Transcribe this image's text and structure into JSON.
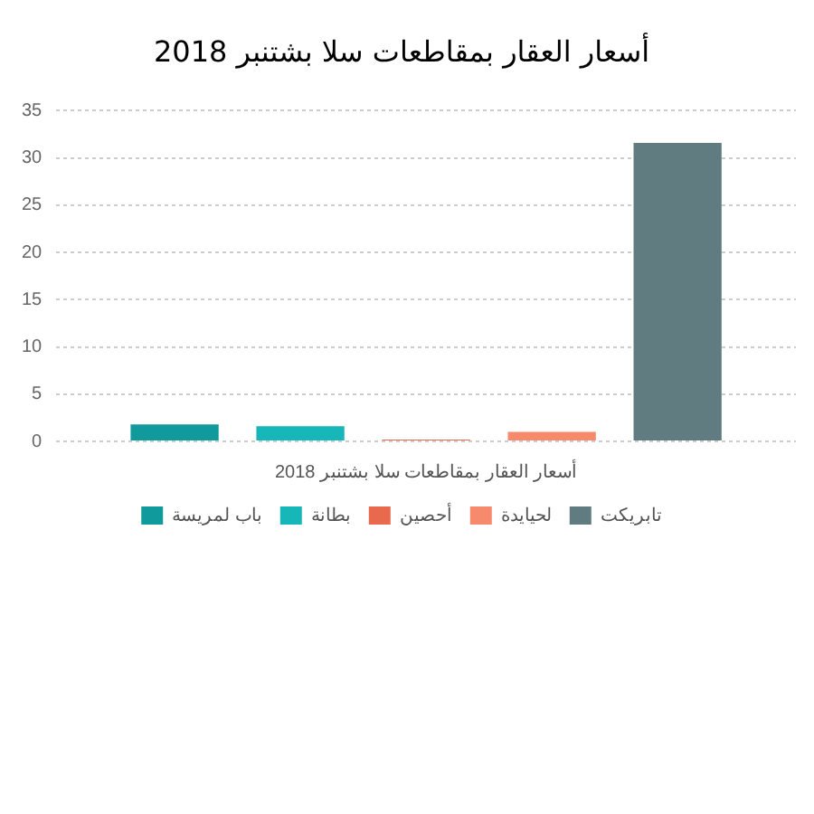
{
  "chart_data": {
    "type": "bar",
    "title": "أسعار العقار بمقاطعات سلا بشتنبر 2018",
    "categories": [
      "أسعار العقار بمقاطعات سلا بشتنبر 2018"
    ],
    "series": [
      {
        "name": "باب لمريسة",
        "color": "#119a9c",
        "values": [
          1.8
        ]
      },
      {
        "name": "بطانة",
        "color": "#17b6b9",
        "values": [
          1.6
        ]
      },
      {
        "name": "أحصين",
        "color": "#e8694d",
        "values": [
          0.2
        ]
      },
      {
        "name": "لحيايدة",
        "color": "#f78a6c",
        "values": [
          1.0
        ]
      },
      {
        "name": "تابريكت",
        "color": "#607c80",
        "values": [
          31.6
        ]
      }
    ],
    "ylim": [
      0,
      35
    ],
    "yticks": [
      0,
      5,
      10,
      15,
      20,
      25,
      30,
      35
    ],
    "grid": "y",
    "legend": "bottom"
  }
}
